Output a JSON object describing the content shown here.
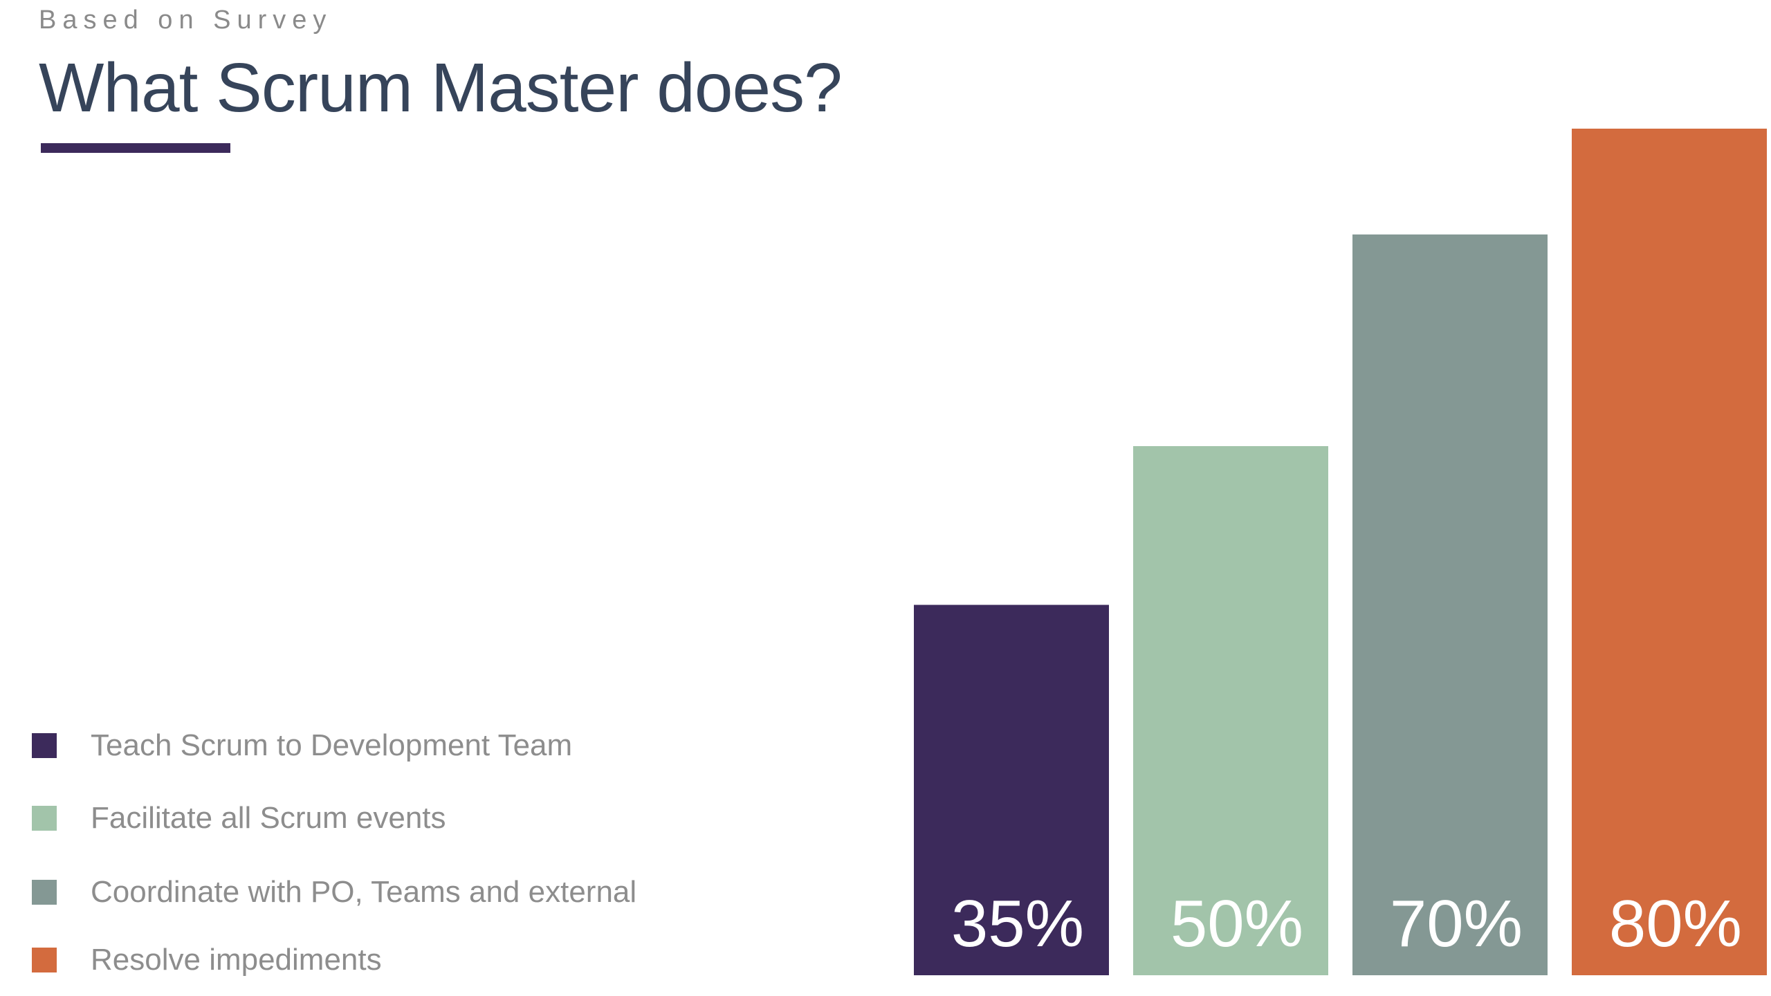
{
  "header": {
    "subtitle": "Based on Survey",
    "title": "What Scrum Master does?",
    "underline_color": "#3c2a5b"
  },
  "chart_data": {
    "type": "bar",
    "categories": [
      "Teach Scrum to Development Team",
      "Facilitate all Scrum events",
      "Coordinate with PO, Teams and external",
      "Resolve impediments"
    ],
    "values": [
      35,
      50,
      70,
      80
    ],
    "data_labels": [
      "35%",
      "50%",
      "70%",
      "80%"
    ],
    "colors": [
      "#3c2a5b",
      "#a2c4aa",
      "#849894",
      "#d36b3e"
    ],
    "ylim": [
      0,
      80
    ],
    "grid": false,
    "legend_position": "bottom-left"
  },
  "legend": {
    "items": [
      {
        "label": "Teach Scrum to Development Team",
        "color": "#3c2a5b"
      },
      {
        "label": "Facilitate all Scrum events",
        "color": "#a2c4aa"
      },
      {
        "label": "Coordinate with PO, Teams and external",
        "color": "#849894"
      },
      {
        "label": "Resolve impediments",
        "color": "#d36b3e"
      }
    ]
  }
}
